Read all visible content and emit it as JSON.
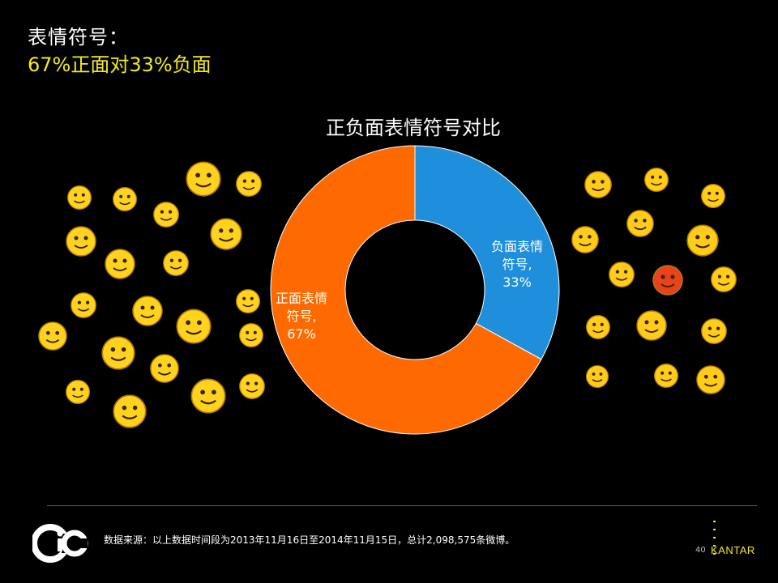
{
  "title": "表情符号：",
  "subtitle": "67%正面对33%负面",
  "chart_data": {
    "type": "pie",
    "title": "正负面表情符号对比",
    "donut": true,
    "slices": [
      {
        "label": "负面表情符号,",
        "value": 33,
        "value_label": "33%",
        "color": "#1f8fdc"
      },
      {
        "label": "正面表情符号,",
        "value": 67,
        "value_label": "67%",
        "color": "#ff6a00"
      }
    ]
  },
  "emojis": {
    "positive": [
      "down-five-icon",
      "coin-face-icon",
      "big-smile-icon",
      "dollar-eyes-icon",
      "star-eyes-icon",
      "grin-icon",
      "laugh-icon",
      "wide-eyes-icon",
      "heart-eyes-icon",
      "thumbs-up-icon",
      "smile-icon",
      "shy-icon",
      "grimace-icon",
      "heart-icon",
      "wink-icon",
      "blush-icon",
      "calm-smile-icon",
      "surprised-icon",
      "peace-hand-icon",
      "thinking-icon",
      "rosy-cheeks-icon",
      "thumb-up-hand-icon"
    ],
    "negative": [
      "crying-tear-icon",
      "sleepy-icon",
      "broken-heart-icon",
      "sad-icon",
      "pout-icon",
      "sweat-icon",
      "angry-icon",
      "rage-red-icon",
      "scream-icon",
      "cold-sweat-icon",
      "bawl-icon",
      "dizzy-icon",
      "shock-icon",
      "frown-icon",
      "fear-icon"
    ]
  },
  "footer": {
    "source": "数据来源：以上数据时间段为2013年11月16日至2014年11月15日，总计2,098,575条微博。",
    "page": "40",
    "brand": "KANTAR",
    "logo_text": "cic"
  },
  "colors": {
    "accent": "#f3ec19",
    "positive": "#ff6a00",
    "negative": "#1f8fdc",
    "background": "#000000"
  }
}
